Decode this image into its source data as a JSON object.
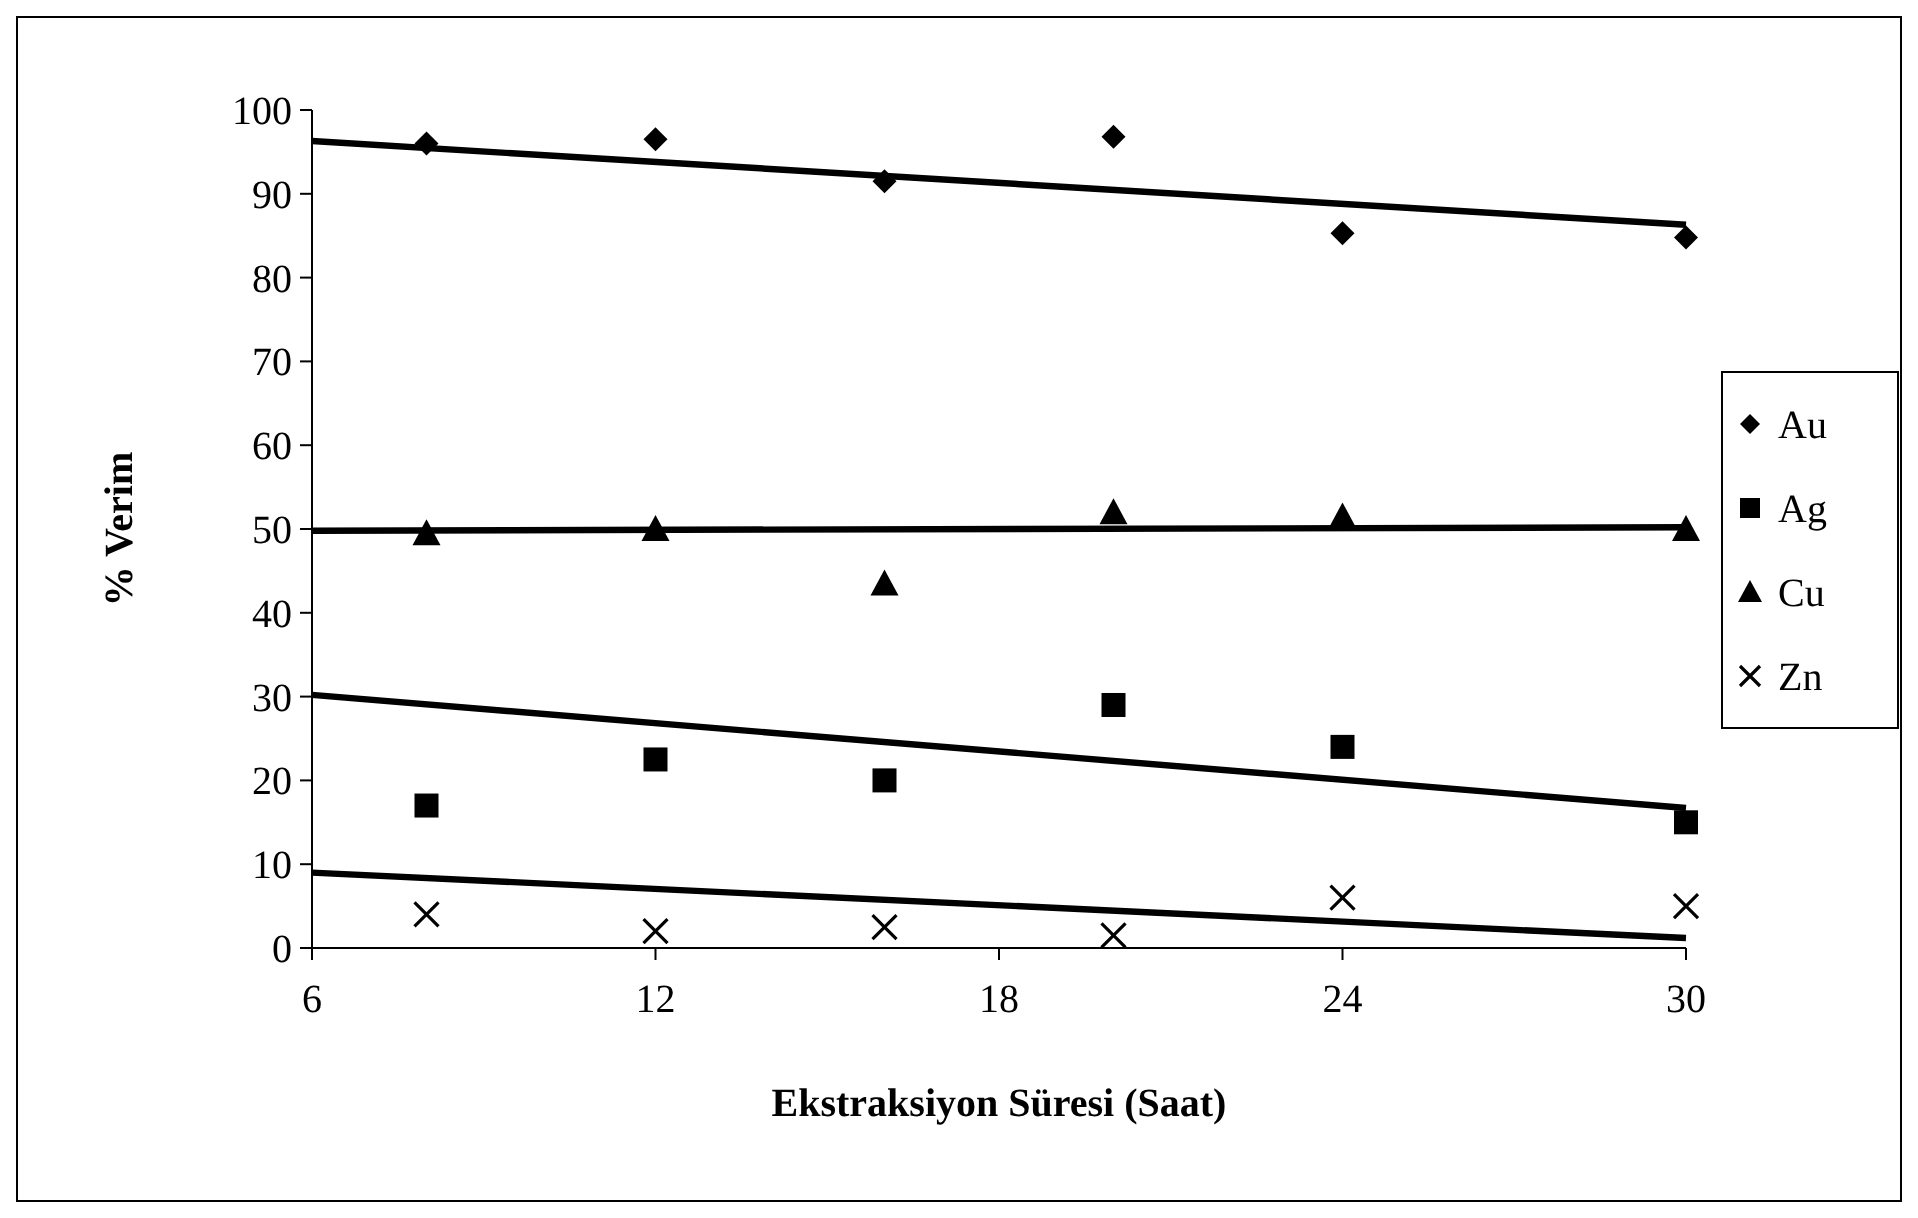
{
  "chart_data": {
    "type": "scatter",
    "xlabel": "Ekstraksiyon Süresi (Saat)",
    "ylabel": "% Verim",
    "xlim": [
      6,
      30
    ],
    "xticks": [
      6,
      12,
      18,
      24,
      30
    ],
    "ylim": [
      0,
      100
    ],
    "yticks": [
      0,
      10,
      20,
      30,
      40,
      50,
      60,
      70,
      80,
      90,
      100
    ],
    "grid": false,
    "legend": "right",
    "series": [
      {
        "name": "Au",
        "color": "#000000",
        "marker": "diamond",
        "x": [
          8,
          12,
          16,
          20,
          24,
          30
        ],
        "values": [
          96,
          96.5,
          91.5,
          96.8,
          85.3,
          84.8
        ]
      },
      {
        "name": "Ag",
        "color": "#000000",
        "marker": "square",
        "x": [
          8,
          12,
          16,
          20,
          24,
          30
        ],
        "values": [
          17,
          22.5,
          20,
          29,
          24,
          15
        ]
      },
      {
        "name": "Cu",
        "color": "#000000",
        "marker": "triangle",
        "x": [
          8,
          12,
          16,
          20,
          24,
          30
        ],
        "values": [
          49.5,
          50,
          43.5,
          52,
          51.5,
          50
        ]
      },
      {
        "name": "Zn",
        "color": "#000000",
        "marker": "cross",
        "x": [
          8,
          12,
          16,
          20,
          24,
          30
        ],
        "values": [
          4,
          2,
          2.5,
          1.5,
          6,
          5
        ]
      },
      {
        "type": "line",
        "color": "#000000",
        "marker": "none",
        "line_style": "solid",
        "x": [
          6,
          30
        ],
        "values": [
          96.3,
          86.3
        ]
      },
      {
        "type": "line",
        "color": "#000000",
        "marker": "none",
        "line_style": "solid",
        "x": [
          6,
          30
        ],
        "values": [
          49.8,
          50.2
        ]
      },
      {
        "type": "line",
        "color": "#000000",
        "marker": "none",
        "line_style": "solid",
        "x": [
          6,
          30
        ],
        "values": [
          30.2,
          16.7
        ]
      },
      {
        "type": "line",
        "color": "#000000",
        "marker": "none",
        "line_style": "solid",
        "x": [
          6,
          30
        ],
        "values": [
          9,
          1.2
        ]
      }
    ]
  }
}
